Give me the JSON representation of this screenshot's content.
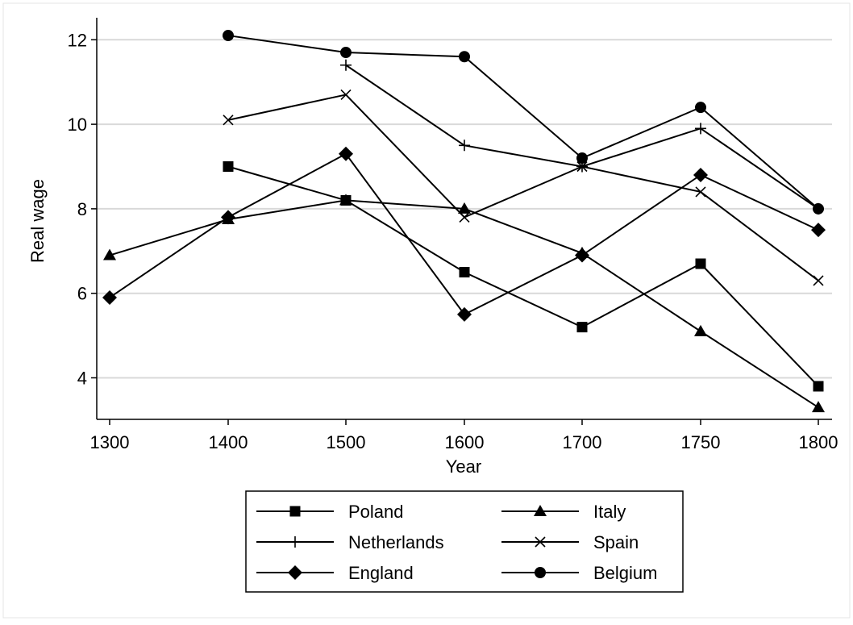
{
  "chart_data": {
    "type": "line",
    "title": "",
    "xlabel": "Year",
    "ylabel": "Real wage",
    "x": [
      "1300",
      "1400",
      "1500",
      "1600",
      "1700",
      "1750",
      "1800"
    ],
    "y_ticks": [
      "4",
      "6",
      "8",
      "10",
      "12"
    ],
    "ylim": [
      3,
      12.3
    ],
    "grid": true,
    "legend_position": "bottom",
    "series": [
      {
        "name": "Poland",
        "marker": "square",
        "values": [
          null,
          9.0,
          8.2,
          6.5,
          5.2,
          6.7,
          3.8
        ]
      },
      {
        "name": "Italy",
        "marker": "triangle",
        "values": [
          6.9,
          7.75,
          8.2,
          8.0,
          6.95,
          5.1,
          3.3
        ]
      },
      {
        "name": "Netherlands",
        "marker": "plus",
        "values": [
          null,
          null,
          11.4,
          9.5,
          9.0,
          9.9,
          8.0
        ]
      },
      {
        "name": "Spain",
        "marker": "x",
        "values": [
          null,
          10.1,
          10.7,
          7.8,
          9.0,
          8.4,
          6.3
        ]
      },
      {
        "name": "England",
        "marker": "diamond",
        "values": [
          5.9,
          7.8,
          9.3,
          5.5,
          6.9,
          8.8,
          7.5
        ]
      },
      {
        "name": "Belgium",
        "marker": "circle",
        "values": [
          null,
          12.1,
          11.7,
          11.6,
          9.2,
          10.4,
          8.0
        ]
      }
    ]
  }
}
